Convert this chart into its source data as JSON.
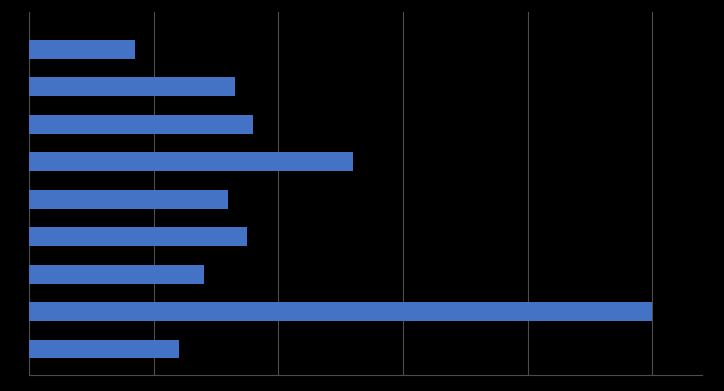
{
  "values": [
    17,
    33,
    36,
    52,
    32,
    35,
    28,
    100,
    24
  ],
  "bar_color": "#4472C4",
  "background_color": "#000000",
  "grid_color": "#4d4d4d",
  "bar_height": 0.5,
  "xlim": [
    0,
    108
  ],
  "ylim": [
    -0.7,
    9.0
  ],
  "figsize": [
    7.24,
    3.91
  ],
  "dpi": 100,
  "xticks": [
    0,
    20,
    40,
    60,
    80,
    100
  ]
}
